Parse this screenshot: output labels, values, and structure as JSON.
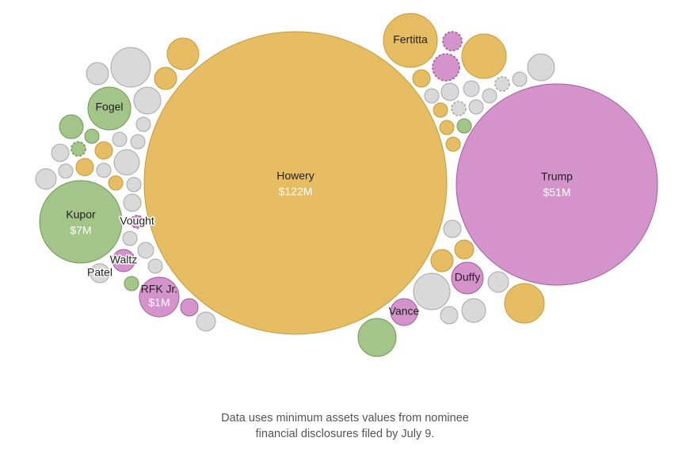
{
  "colors": {
    "gold": "#e6bd62",
    "gold_stroke": "#c49a3c",
    "purple": "#d494cb",
    "purple_stroke": "#a45a9c",
    "green": "#a3c589",
    "green_stroke": "#6f9a52",
    "gray": "#d9d9d9",
    "gray_stroke": "#a8a8a8"
  },
  "chart_data": {
    "type": "packed-bubble",
    "size_encodes": "minimum assets value",
    "labeled_bubbles": [
      {
        "name": "Howery",
        "value": "$122M",
        "amount_musd": 122,
        "color": "gold"
      },
      {
        "name": "Trump",
        "value": "$51M",
        "amount_musd": 51,
        "color": "purple"
      },
      {
        "name": "Kupor",
        "value": "$7M",
        "amount_musd": 7,
        "color": "green"
      },
      {
        "name": "RFK Jr.",
        "value": "$1M",
        "amount_musd": 1,
        "color": "purple"
      },
      {
        "name": "Fertitta",
        "color": "gold"
      },
      {
        "name": "Fogel",
        "color": "green"
      },
      {
        "name": "Duffy",
        "color": "purple"
      },
      {
        "name": "Vance",
        "color": "purple"
      },
      {
        "name": "Waltz",
        "color": "purple"
      },
      {
        "name": "Vought",
        "color": "purple"
      },
      {
        "name": "Patel",
        "color": "gray"
      }
    ]
  },
  "footnote": {
    "line1": "Data uses minimum assets values from nominee",
    "line2": "financial disclosures filed by July 9."
  }
}
